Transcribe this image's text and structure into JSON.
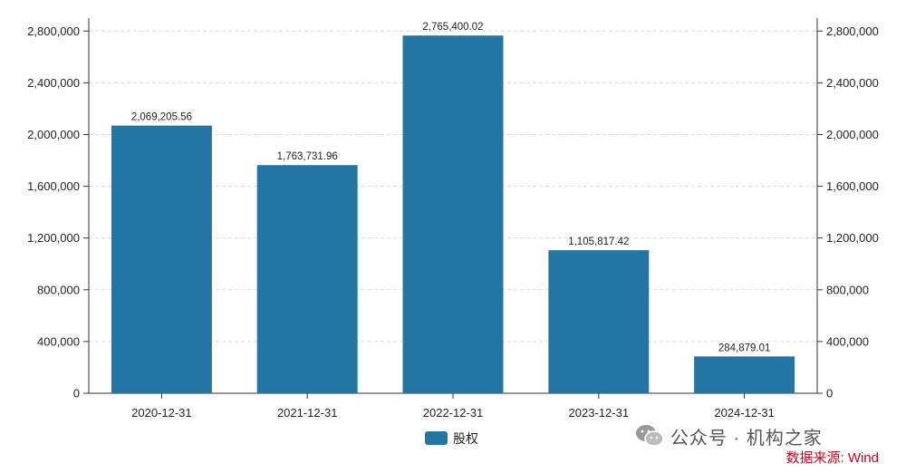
{
  "chart_data": {
    "type": "bar",
    "categories": [
      "2020-12-31",
      "2021-12-31",
      "2022-12-31",
      "2023-12-31",
      "2024-12-31"
    ],
    "series": [
      {
        "name": "股权",
        "values": [
          2069205.56,
          1763731.96,
          2765400.02,
          1105817.42,
          284879.01
        ]
      }
    ],
    "data_labels": [
      "2,069,205.56",
      "1,763,731.96",
      "2,765,400.02",
      "1,105,817.42",
      "284,879.01"
    ],
    "ylim": [
      0,
      2900000
    ],
    "yticks": [
      0,
      400000,
      800000,
      1200000,
      1600000,
      2000000,
      2400000,
      2800000
    ],
    "ytick_labels": [
      "0",
      "400,000",
      "800,000",
      "1,200,000",
      "1,600,000",
      "2,000,000",
      "2,400,000",
      "2,800,000"
    ],
    "grid": true,
    "dual_y_axis": true,
    "legend_position": "bottom-center",
    "bar_color": "#2376a4"
  },
  "watermark": {
    "text": "公众号 · 机构之家",
    "icon": "wechat-icon"
  },
  "source": "数据来源: Wind"
}
